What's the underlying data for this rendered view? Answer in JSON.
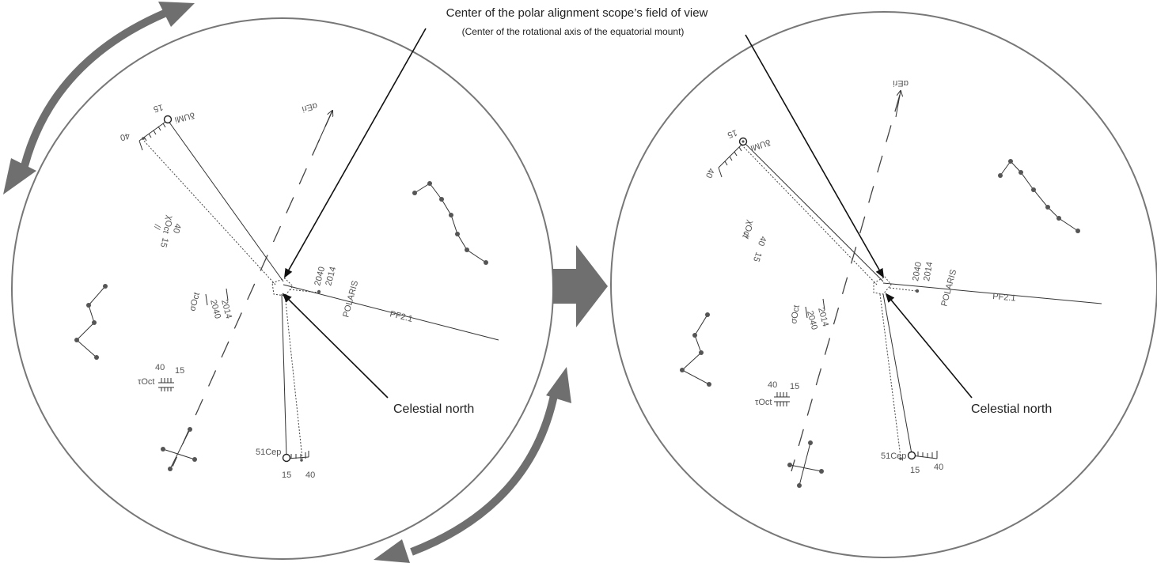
{
  "callouts": {
    "center_title": "Center of the polar alignment scope’s field of view",
    "center_sub": "(Center of the rotational axis of the equatorial mount)",
    "celestial_north_left": "Celestial north",
    "celestial_north_right": "Celestial north"
  },
  "left_reticle": {
    "polaris": "POLARIS",
    "pf": "PF2.1",
    "yr_2040": "2040",
    "yr_2014": "2014",
    "eri": "αEri",
    "dumi": "δUMi",
    "dumi_15": "15",
    "dumi_40": "40",
    "yoct": "χOct",
    "yoct_40": "40",
    "yoct_15": "15",
    "sigoct": "σOct",
    "sigoct_2014": "2014",
    "sigoct_2040": "2040",
    "toct": "τOct",
    "toct_40": "40",
    "toct_15": "15",
    "cep": "51Cep",
    "cep_15": "15",
    "cep_40": "40"
  },
  "right_reticle": {
    "polaris": "POLARIS",
    "pf": "PF2.1",
    "yr_2040": "2040",
    "yr_2014": "2014",
    "eri": "αEri",
    "dumi": "δUMi",
    "dumi_15": "15",
    "dumi_40": "40",
    "yoct": "χOct",
    "yoct_40": "40",
    "yoct_15": "15",
    "sigoct": "σOct",
    "sigoct_2014": "2014",
    "sigoct_2040": "2040",
    "toct": "τOct",
    "toct_40": "40",
    "toct_15": "15",
    "cep": "51Cep",
    "cep_15": "15",
    "cep_40": "40"
  },
  "colors": {
    "arrow_gray": "#6f6f6f",
    "circle_gray": "#777777",
    "line_dark": "#333333"
  },
  "icons": {
    "rotate_arrow": "curved-double-arrow",
    "next_arrow": "block-arrow-right"
  }
}
